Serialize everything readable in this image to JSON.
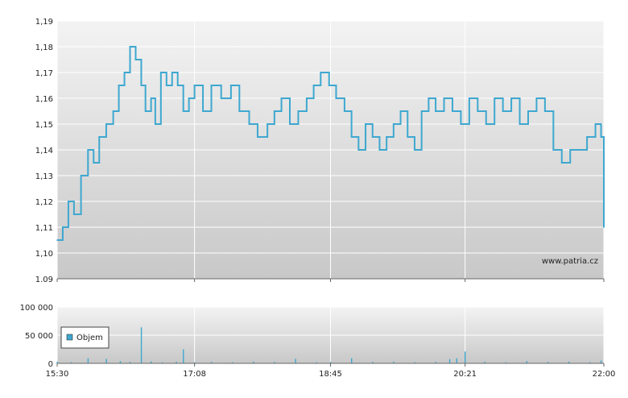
{
  "watermark": "www.patria.cz",
  "colors": {
    "line": "#3ea8d0",
    "volume": "#3ea8d0",
    "grid": "#ffffff",
    "bg_top": "#f3f3f3",
    "bg_bottom": "#c8c8c8"
  },
  "chart_data": [
    {
      "type": "line",
      "title": "",
      "xlabel": "",
      "ylabel": "",
      "ylim": [
        1.09,
        1.19
      ],
      "yticks": [
        "1,19",
        "1,18",
        "1,17",
        "1,16",
        "1,15",
        "1,14",
        "1,13",
        "1,12",
        "1,11",
        "1,10",
        "1.09"
      ],
      "ytick_values": [
        1.19,
        1.18,
        1.17,
        1.16,
        1.15,
        1.14,
        1.13,
        1.12,
        1.11,
        1.1,
        1.09
      ],
      "xlim": [
        "15:30",
        "22:00"
      ],
      "grid": true,
      "series": [
        {
          "x": [
            "15:30",
            "15:34",
            "15:38",
            "15:42",
            "15:47",
            "15:52",
            "15:56",
            "16:00",
            "16:05",
            "16:10",
            "16:14",
            "16:18",
            "16:22",
            "16:26",
            "16:30",
            "16:33",
            "16:37",
            "16:40",
            "16:44",
            "16:48",
            "16:52",
            "16:56",
            "17:00",
            "17:04",
            "17:08",
            "17:14",
            "17:20",
            "17:27",
            "17:34",
            "17:40",
            "17:47",
            "17:53",
            "18:00",
            "18:05",
            "18:10",
            "18:16",
            "18:22",
            "18:28",
            "18:33",
            "18:38",
            "18:44",
            "18:49",
            "18:55",
            "19:00",
            "19:05",
            "19:10",
            "19:15",
            "19:20",
            "19:25",
            "19:30",
            "19:35",
            "19:40",
            "19:45",
            "19:50",
            "19:55",
            "20:00",
            "20:06",
            "20:12",
            "20:18",
            "20:24",
            "20:30",
            "20:36",
            "20:42",
            "20:48",
            "20:54",
            "21:00",
            "21:06",
            "21:12",
            "21:18",
            "21:24",
            "21:30",
            "21:36",
            "21:42",
            "21:48",
            "21:54",
            "21:58",
            "22:00"
          ],
          "values": [
            1.105,
            1.11,
            1.12,
            1.115,
            1.13,
            1.14,
            1.135,
            1.145,
            1.15,
            1.155,
            1.165,
            1.17,
            1.18,
            1.175,
            1.165,
            1.155,
            1.16,
            1.15,
            1.17,
            1.165,
            1.17,
            1.165,
            1.155,
            1.16,
            1.165,
            1.155,
            1.165,
            1.16,
            1.165,
            1.155,
            1.15,
            1.145,
            1.15,
            1.155,
            1.16,
            1.15,
            1.155,
            1.16,
            1.165,
            1.17,
            1.165,
            1.16,
            1.155,
            1.145,
            1.14,
            1.15,
            1.145,
            1.14,
            1.145,
            1.15,
            1.155,
            1.145,
            1.14,
            1.155,
            1.16,
            1.155,
            1.16,
            1.155,
            1.15,
            1.16,
            1.155,
            1.15,
            1.16,
            1.155,
            1.16,
            1.15,
            1.155,
            1.16,
            1.155,
            1.14,
            1.135,
            1.14,
            1.14,
            1.145,
            1.15,
            1.145,
            1.11
          ]
        }
      ]
    },
    {
      "type": "bar",
      "title": "",
      "legend": "Objem",
      "legend_position": "left",
      "ylim": [
        0,
        100000
      ],
      "yticks": [
        "100 000",
        "50 000",
        "0"
      ],
      "ytick_values": [
        100000,
        50000,
        0
      ],
      "xticks": [
        "15:30",
        "17:08",
        "18:45",
        "20:21",
        "22:00"
      ],
      "grid": true,
      "series": [
        {
          "name": "Objem",
          "x": [
            "15:30",
            "15:40",
            "15:52",
            "16:05",
            "16:15",
            "16:22",
            "16:30",
            "16:37",
            "16:45",
            "16:55",
            "17:00",
            "17:08",
            "17:20",
            "17:35",
            "17:50",
            "18:05",
            "18:20",
            "18:35",
            "18:45",
            "19:00",
            "19:15",
            "19:30",
            "19:45",
            "20:00",
            "20:10",
            "20:15",
            "20:21",
            "20:35",
            "20:50",
            "21:05",
            "21:20",
            "21:35",
            "21:50",
            "21:58"
          ],
          "values": [
            3000,
            2000,
            9000,
            8000,
            4000,
            2500,
            64000,
            3500,
            2000,
            3000,
            25000,
            2000,
            2500,
            2000,
            3000,
            2500,
            8000,
            2000,
            2500,
            9000,
            2500,
            3000,
            2000,
            2500,
            7500,
            9000,
            21000,
            3000,
            2000,
            4000,
            2500,
            3000,
            2000,
            5000
          ]
        }
      ]
    }
  ],
  "x_axis_labels": [
    "15:30",
    "17:08",
    "18:45",
    "20:21",
    "22:00"
  ]
}
